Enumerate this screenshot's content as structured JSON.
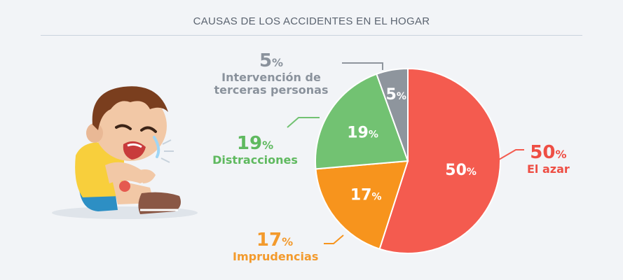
{
  "chart_data": {
    "type": "pie",
    "title": "CAUSAS DE LOS ACCIDENTES EN EL HOGAR",
    "slices": [
      {
        "label": "El azar",
        "value": 50,
        "color": "#f45b4f"
      },
      {
        "label": "Imprudencias",
        "value": 17,
        "color": "#f7941d"
      },
      {
        "label": "Distracciones",
        "value": 19,
        "color": "#72c272"
      },
      {
        "label": "Intervención de terceras personas",
        "value": 5,
        "color": "#8e959d"
      }
    ],
    "unit": "%"
  },
  "labels": {
    "azar": {
      "pct": "50",
      "name": "El azar"
    },
    "impr": {
      "pct": "17",
      "name": "Imprudencias"
    },
    "dist": {
      "pct": "19",
      "name": "Distracciones"
    },
    "terc": {
      "pct": "5",
      "name1": "Intervención de",
      "name2": "terceras personas"
    }
  },
  "percent_sign": "%",
  "colors": {
    "label_grey": "#8a929c",
    "label_green": "#5fb95f",
    "label_orange": "#f39a2c",
    "label_red": "#ee4e44"
  }
}
